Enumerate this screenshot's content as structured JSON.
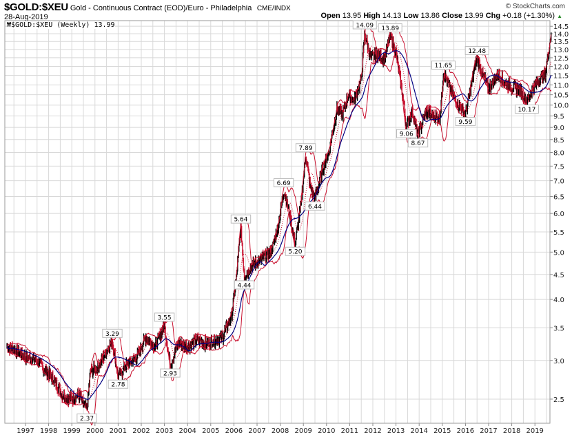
{
  "header": {
    "symbol": "$GOLD:$XEU",
    "description": "Gold - Continuous Contract (EOD)/Euro - Philadelphia",
    "exchange": "CME/INDX",
    "date": "28-Aug-2019",
    "brand": "© StockCharts.com"
  },
  "quote": {
    "open_label": "Open",
    "open": "13.95",
    "high_label": "High",
    "high": "14.13",
    "low_label": "Low",
    "low": "13.86",
    "close_label": "Close",
    "close": "13.99",
    "chg_label": "Chg",
    "chg": "+0.18 (+1.30%)",
    "direction_icon": "triangle-up"
  },
  "legend": {
    "text": "$GOLD:$XEU (Weekly) 13.99"
  },
  "colors": {
    "price": "#000000",
    "price_down": "#c8102e",
    "bands": "#c8102e",
    "ma_long": "#000080",
    "grid": "#d8d8d8"
  },
  "chart_data": {
    "type": "line",
    "y_scale": "log",
    "ylim": [
      2.3,
      14.6
    ],
    "y_ticks": [
      "2.5",
      "3.0",
      "3.5",
      "4.0",
      "4.5",
      "5.0",
      "5.5",
      "6.0",
      "6.5",
      "7.0",
      "7.5",
      "8.0",
      "8.5",
      "9.0",
      "9.5",
      "10.0",
      "10.5",
      "11.0",
      "11.5",
      "12.0",
      "12.5",
      "13.0",
      "13.5",
      "14.0",
      "14.5"
    ],
    "x_ticks": [
      "1997",
      "1998",
      "1999",
      "2000",
      "2001",
      "2002",
      "2003",
      "2004",
      "2005",
      "2006",
      "2007",
      "2008",
      "2009",
      "2010",
      "2011",
      "2012",
      "2013",
      "2014",
      "2015",
      "2016",
      "2017",
      "2018",
      "2019"
    ],
    "xlim": [
      1996.1,
      2019.75
    ],
    "grid": true,
    "overlays": [
      "Bollinger Bands",
      "moving average (blue)",
      "moving average (dotted)"
    ],
    "price_path": [
      [
        1996.2,
        3.2
      ],
      [
        1996.6,
        3.15
      ],
      [
        1997.0,
        3.05
      ],
      [
        1997.5,
        3.0
      ],
      [
        1997.9,
        2.85
      ],
      [
        1998.2,
        2.75
      ],
      [
        1998.6,
        2.55
      ],
      [
        1999.0,
        2.5
      ],
      [
        1999.3,
        2.55
      ],
      [
        1999.65,
        2.37
      ],
      [
        1999.8,
        2.85
      ],
      [
        2000.1,
        2.9
      ],
      [
        2000.45,
        3.1
      ],
      [
        2000.75,
        3.29
      ],
      [
        2001.0,
        2.78
      ],
      [
        2001.4,
        2.95
      ],
      [
        2001.8,
        3.05
      ],
      [
        2002.2,
        3.35
      ],
      [
        2002.6,
        3.2
      ],
      [
        2003.0,
        3.55
      ],
      [
        2003.25,
        2.93
      ],
      [
        2003.6,
        3.25
      ],
      [
        2004.0,
        3.2
      ],
      [
        2004.4,
        3.3
      ],
      [
        2004.8,
        3.25
      ],
      [
        2005.2,
        3.3
      ],
      [
        2005.5,
        3.35
      ],
      [
        2005.9,
        3.7
      ],
      [
        2006.1,
        4.4
      ],
      [
        2006.3,
        5.64
      ],
      [
        2006.45,
        4.44
      ],
      [
        2006.8,
        4.7
      ],
      [
        2007.2,
        4.85
      ],
      [
        2007.6,
        5.0
      ],
      [
        2007.9,
        5.6
      ],
      [
        2008.15,
        6.69
      ],
      [
        2008.4,
        6.0
      ],
      [
        2008.65,
        5.2
      ],
      [
        2008.9,
        6.3
      ],
      [
        2009.1,
        7.89
      ],
      [
        2009.3,
        6.8
      ],
      [
        2009.5,
        6.44
      ],
      [
        2009.8,
        7.3
      ],
      [
        2010.1,
        8.0
      ],
      [
        2010.45,
        9.8
      ],
      [
        2010.7,
        9.6
      ],
      [
        2010.95,
        10.5
      ],
      [
        2011.2,
        10.2
      ],
      [
        2011.5,
        11.3
      ],
      [
        2011.65,
        14.09
      ],
      [
        2011.9,
        12.5
      ],
      [
        2012.2,
        12.7
      ],
      [
        2012.5,
        12.4
      ],
      [
        2012.75,
        13.89
      ],
      [
        2013.0,
        12.8
      ],
      [
        2013.25,
        10.8
      ],
      [
        2013.45,
        9.06
      ],
      [
        2013.7,
        9.7
      ],
      [
        2013.95,
        8.67
      ],
      [
        2014.3,
        9.7
      ],
      [
        2014.6,
        9.5
      ],
      [
        2014.9,
        9.4
      ],
      [
        2015.05,
        11.65
      ],
      [
        2015.4,
        10.6
      ],
      [
        2015.7,
        10.0
      ],
      [
        2016.0,
        9.59
      ],
      [
        2016.3,
        11.3
      ],
      [
        2016.5,
        12.48
      ],
      [
        2016.8,
        11.4
      ],
      [
        2017.0,
        10.8
      ],
      [
        2017.4,
        11.6
      ],
      [
        2017.7,
        11.1
      ],
      [
        2018.0,
        10.9
      ],
      [
        2018.4,
        10.7
      ],
      [
        2018.65,
        10.17
      ],
      [
        2018.9,
        10.8
      ],
      [
        2019.2,
        11.3
      ],
      [
        2019.45,
        11.6
      ],
      [
        2019.6,
        13.0
      ],
      [
        2019.7,
        13.99
      ]
    ],
    "annotations": [
      {
        "x": 1999.65,
        "value": "2.37",
        "pos": "below"
      },
      {
        "x": 2000.75,
        "value": "3.29",
        "pos": "above"
      },
      {
        "x": 2001.0,
        "value": "2.78",
        "pos": "below"
      },
      {
        "x": 2003.0,
        "value": "3.55",
        "pos": "above"
      },
      {
        "x": 2003.25,
        "value": "2.93",
        "pos": "below"
      },
      {
        "x": 2006.3,
        "value": "5.64",
        "pos": "above"
      },
      {
        "x": 2006.45,
        "value": "4.44",
        "pos": "below"
      },
      {
        "x": 2008.15,
        "value": "6.69",
        "pos": "above"
      },
      {
        "x": 2008.65,
        "value": "5.20",
        "pos": "below"
      },
      {
        "x": 2009.1,
        "value": "7.89",
        "pos": "above"
      },
      {
        "x": 2009.5,
        "value": "6.44",
        "pos": "below"
      },
      {
        "x": 2011.65,
        "value": "14.09",
        "pos": "above"
      },
      {
        "x": 2012.75,
        "value": "13.89",
        "pos": "above"
      },
      {
        "x": 2013.45,
        "value": "9.06",
        "pos": "below"
      },
      {
        "x": 2013.95,
        "value": "8.67",
        "pos": "below"
      },
      {
        "x": 2015.05,
        "value": "11.65",
        "pos": "above"
      },
      {
        "x": 2016.0,
        "value": "9.59",
        "pos": "below"
      },
      {
        "x": 2016.5,
        "value": "12.48",
        "pos": "above"
      },
      {
        "x": 2018.65,
        "value": "10.17",
        "pos": "below"
      }
    ]
  }
}
